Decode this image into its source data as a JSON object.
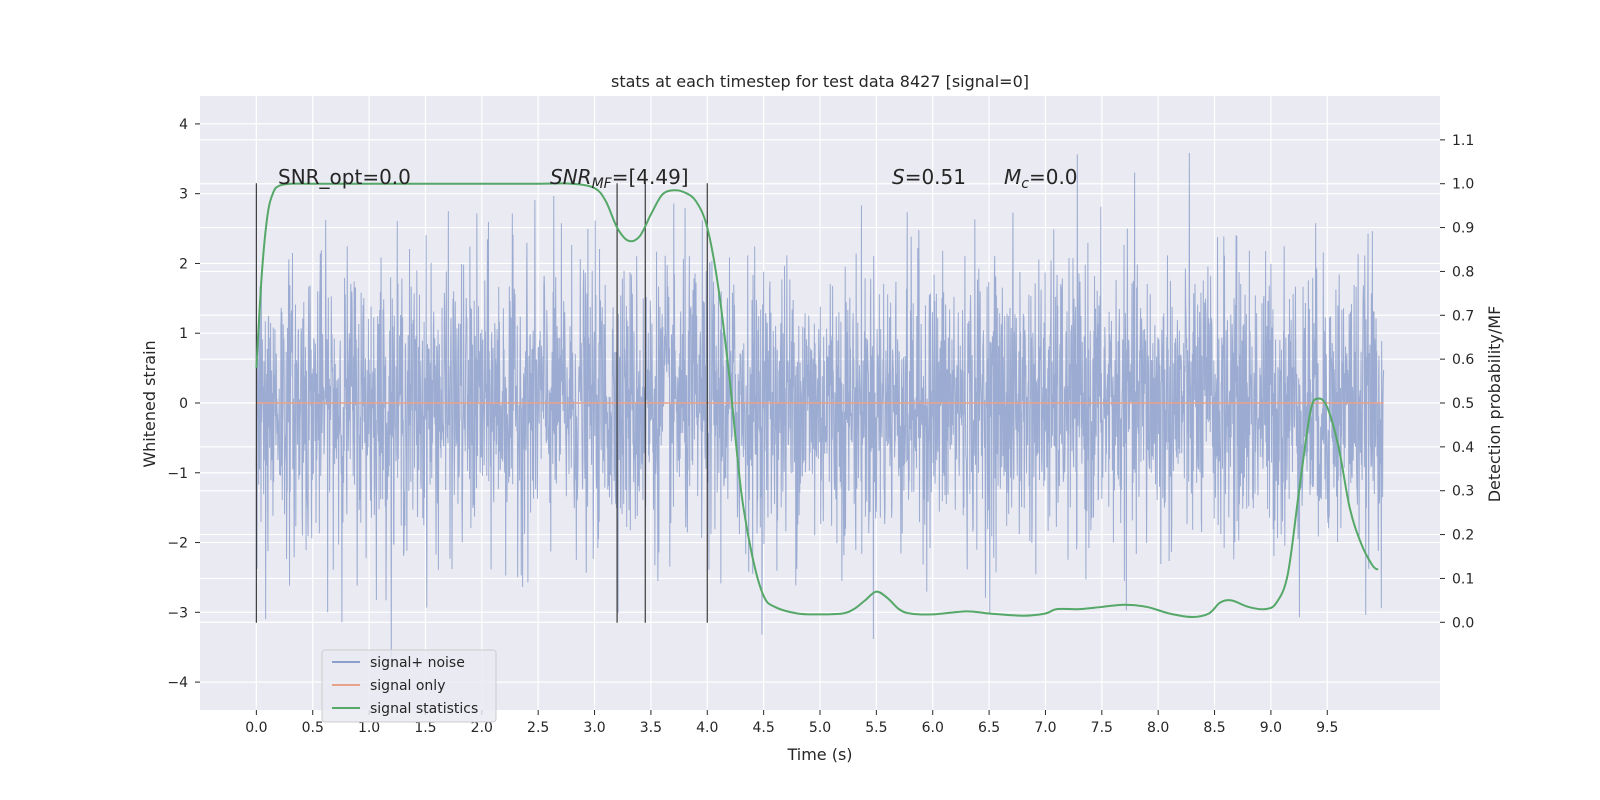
{
  "chart_data": {
    "type": "line",
    "title": "stats at each timestep for test data 8427 [signal=0]",
    "xlabel": "Time (s)",
    "ylabel": "Whitened strain",
    "ylabel_right": "Detection probability/MF",
    "xlim": [
      -0.5,
      10.5
    ],
    "ylim": [
      -4.4,
      4.4
    ],
    "ylim_right": [
      -0.2,
      1.2
    ],
    "x_ticks": [
      0.0,
      0.5,
      1.0,
      1.5,
      2.0,
      2.5,
      3.0,
      3.5,
      4.0,
      4.5,
      5.0,
      5.5,
      6.0,
      6.5,
      7.0,
      7.5,
      8.0,
      8.5,
      9.0,
      9.5
    ],
    "x_tick_labels": [
      "0.0",
      "0.5",
      "1.0",
      "1.5",
      "2.0",
      "2.5",
      "3.0",
      "3.5",
      "4.0",
      "4.5",
      "5.0",
      "5.5",
      "6.0",
      "6.5",
      "7.0",
      "7.5",
      "8.0",
      "8.5",
      "9.0",
      "9.5"
    ],
    "y_ticks": [
      -4,
      -3,
      -2,
      -1,
      0,
      1,
      2,
      3,
      4
    ],
    "y_tick_labels": [
      "−4",
      "−3",
      "−2",
      "−1",
      "0",
      "1",
      "2",
      "3",
      "4"
    ],
    "y_ticks_right": [
      0.0,
      0.1,
      0.2,
      0.3,
      0.4,
      0.5,
      0.6,
      0.7,
      0.8,
      0.9,
      1.0,
      1.1
    ],
    "y_tick_labels_right": [
      "0.0",
      "0.1",
      "0.2",
      "0.3",
      "0.4",
      "0.5",
      "0.6",
      "0.7",
      "0.8",
      "0.9",
      "1.0",
      "1.1"
    ],
    "annotations": {
      "snr_opt": "SNR_opt=0.0",
      "snr_mf_label": "SNR",
      "snr_mf_sub": "MF",
      "snr_mf_value": "=[4.49]",
      "s_label": "S",
      "s_value": "=0.51",
      "mc_label": "M",
      "mc_sub": "c",
      "mc_value": "=0.0"
    },
    "vertical_markers_x": [
      0.0,
      3.2,
      3.45,
      4.0
    ],
    "vertical_markers_yrange": [
      -3.15,
      3.15
    ],
    "series": [
      {
        "name": "signal+ noise",
        "color": "#8da0cb",
        "x_range": [
          0.0,
          10.0
        ],
        "envelope_typical": [
          -2.2,
          2.3
        ],
        "peak_max": 4.0,
        "peak_min": -4.05
      },
      {
        "name": "signal only",
        "color": "#e8a28a",
        "x_range": [
          0.0,
          10.0
        ],
        "constant": 0.0
      },
      {
        "name": "signal statistics",
        "color": "#55a868",
        "axis": "right",
        "x": [
          0.0,
          0.05,
          0.1,
          0.15,
          0.2,
          0.3,
          0.5,
          1.0,
          1.5,
          2.0,
          2.5,
          2.8,
          3.0,
          3.1,
          3.2,
          3.3,
          3.4,
          3.5,
          3.6,
          3.7,
          3.8,
          3.9,
          4.0,
          4.1,
          4.2,
          4.3,
          4.4,
          4.5,
          4.6,
          4.8,
          5.0,
          5.2,
          5.3,
          5.4,
          5.5,
          5.6,
          5.7,
          5.8,
          6.0,
          6.3,
          6.5,
          6.8,
          7.0,
          7.1,
          7.3,
          7.5,
          7.7,
          7.9,
          8.1,
          8.3,
          8.45,
          8.55,
          8.65,
          8.8,
          8.95,
          9.05,
          9.15,
          9.25,
          9.35,
          9.42,
          9.5,
          9.6,
          9.7,
          9.8,
          9.9,
          9.95
        ],
        "values": [
          0.58,
          0.8,
          0.93,
          0.98,
          0.995,
          1.0,
          1.0,
          1.0,
          1.0,
          1.0,
          1.0,
          1.0,
          0.99,
          0.96,
          0.9,
          0.87,
          0.88,
          0.93,
          0.975,
          0.985,
          0.98,
          0.96,
          0.9,
          0.76,
          0.55,
          0.3,
          0.15,
          0.06,
          0.035,
          0.02,
          0.018,
          0.02,
          0.03,
          0.05,
          0.07,
          0.055,
          0.03,
          0.02,
          0.018,
          0.025,
          0.02,
          0.015,
          0.02,
          0.03,
          0.03,
          0.035,
          0.04,
          0.035,
          0.02,
          0.012,
          0.02,
          0.045,
          0.05,
          0.035,
          0.03,
          0.045,
          0.11,
          0.3,
          0.48,
          0.51,
          0.49,
          0.4,
          0.26,
          0.18,
          0.13,
          0.12
        ]
      }
    ],
    "legend_position": "lower-left",
    "grid": true
  }
}
